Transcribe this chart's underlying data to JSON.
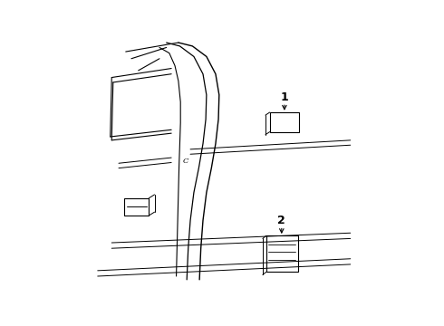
{
  "background_color": "#ffffff",
  "line_color": "#000000",
  "fig_width": 4.9,
  "fig_height": 3.6,
  "dpi": 100,
  "label1": "1",
  "label2": "2",
  "label_c": "C"
}
